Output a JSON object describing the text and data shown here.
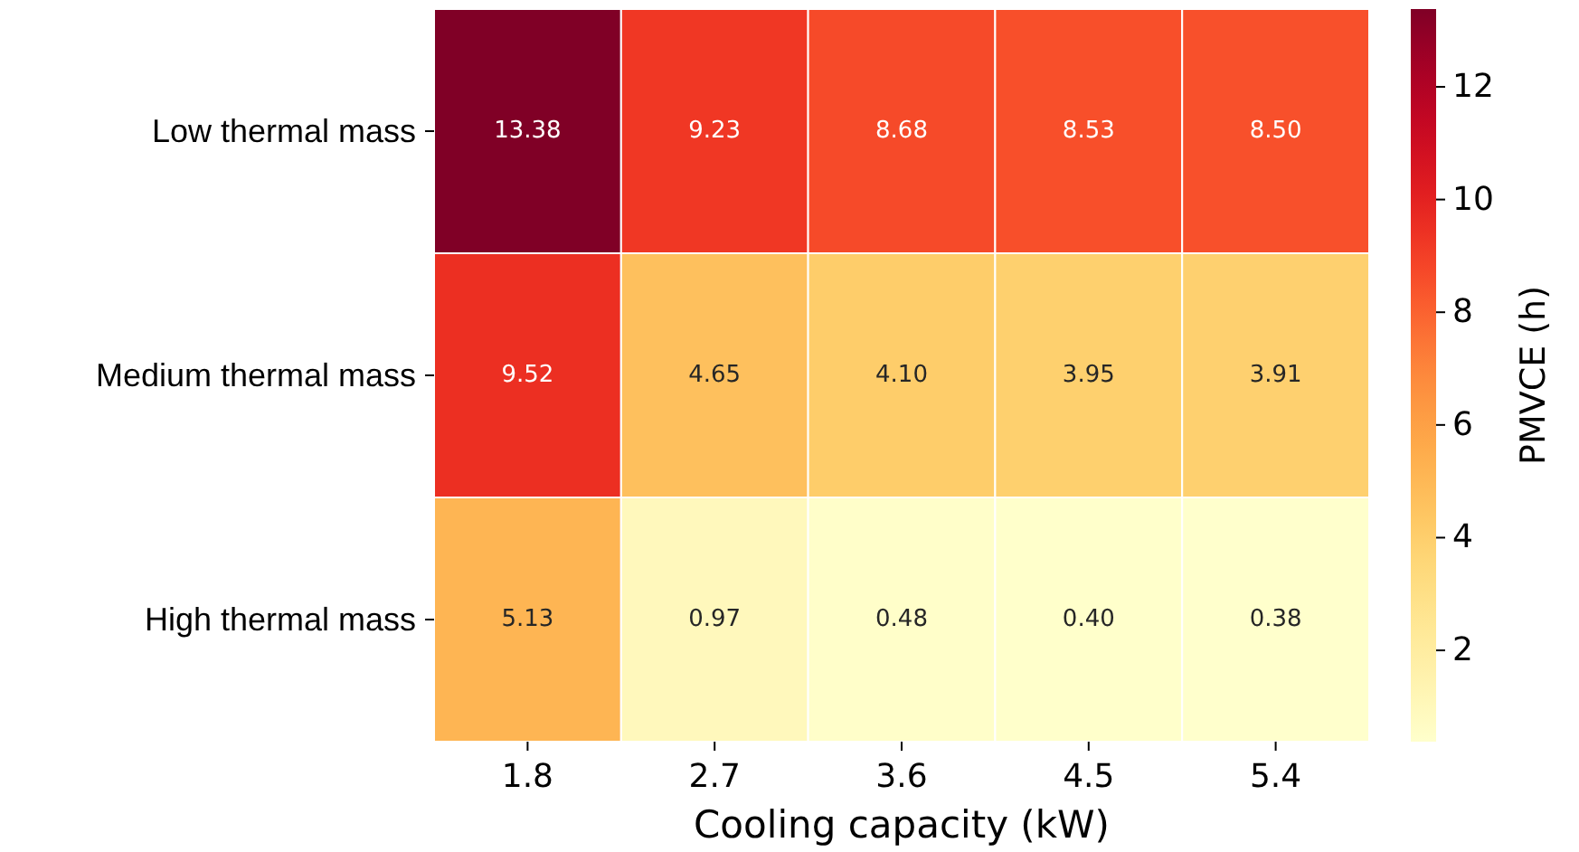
{
  "chart_data": {
    "type": "heatmap",
    "xlabel": "Cooling capacity (kW)",
    "clabel": "PMVCE (h)",
    "categories": [
      "1.8",
      "2.7",
      "3.6",
      "4.5",
      "5.4"
    ],
    "y_categories": [
      "Low thermal mass",
      "Medium thermal mass",
      "High thermal mass"
    ],
    "cells": [
      [
        13.38,
        9.23,
        8.68,
        8.53,
        8.5
      ],
      [
        9.52,
        4.65,
        4.1,
        3.95,
        3.91
      ],
      [
        5.13,
        0.97,
        0.48,
        0.4,
        0.38
      ]
    ],
    "cell_labels": [
      [
        "13.38",
        "9.23",
        "8.68",
        "8.53",
        "8.50"
      ],
      [
        "9.52",
        "4.65",
        "4.10",
        "3.95",
        "3.91"
      ],
      [
        "5.13",
        "0.97",
        "0.48",
        "0.40",
        "0.38"
      ]
    ],
    "clim": [
      0.38,
      13.38
    ],
    "cticks": [
      2,
      4,
      6,
      8,
      10,
      12
    ]
  }
}
